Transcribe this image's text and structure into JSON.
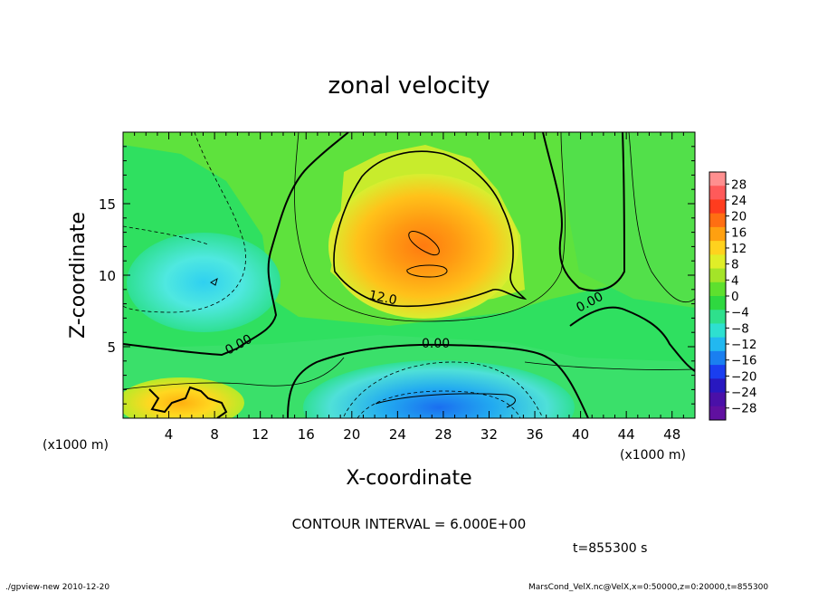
{
  "chart_data": {
    "type": "heatmap",
    "title": "zonal velocity",
    "xlabel": "X-coordinate",
    "ylabel": "Z-coordinate",
    "x_unit": "(x1000 m)",
    "y_unit": "(x1000 m)",
    "xlim": [
      0,
      50
    ],
    "ylim": [
      0,
      20
    ],
    "x_ticks": [
      "4",
      "8",
      "12",
      "16",
      "20",
      "24",
      "28",
      "32",
      "36",
      "40",
      "44",
      "48"
    ],
    "y_ticks": [
      "5",
      "10",
      "15"
    ],
    "colorbar_labels": [
      "28",
      "24",
      "20",
      "16",
      "12",
      "8",
      "4",
      "0",
      "−4",
      "−8",
      "−12",
      "−16",
      "−20",
      "−24",
      "−28"
    ],
    "colorbar_levels": [
      28,
      24,
      20,
      16,
      12,
      8,
      4,
      0,
      -4,
      -8,
      -12,
      -16,
      -20,
      -24,
      -28
    ],
    "contour_labels": [
      {
        "text": "12.0",
        "x": 22.8,
        "z": 8.4
      },
      {
        "text": "0.00",
        "x": 10.6,
        "z": 5.1
      },
      {
        "text": "0.00",
        "x": 27.8,
        "z": 5.4
      },
      {
        "text": "0.00",
        "x": 40.8,
        "z": 8.1
      }
    ],
    "field_features": [
      {
        "kind": "max",
        "x": 26,
        "z": 12,
        "value": 18
      },
      {
        "kind": "min",
        "x": 28,
        "z": 1.0,
        "value": -16
      },
      {
        "kind": "min",
        "x": 8,
        "z": 9.5,
        "value": -10
      },
      {
        "kind": "max",
        "x": 7,
        "z": 1.2,
        "value": 12
      }
    ],
    "contour_interval_text": "CONTOUR INTERVAL = 6.000E+00",
    "time_text": "t=855300 s"
  },
  "footer": {
    "left": "./gpview-new  2010-12-20",
    "right": "MarsCond_VelX.nc@VelX,x=0:50000,z=0:20000,t=855300"
  },
  "colors": {
    "background": "#ffffff",
    "frame": "#000000"
  }
}
